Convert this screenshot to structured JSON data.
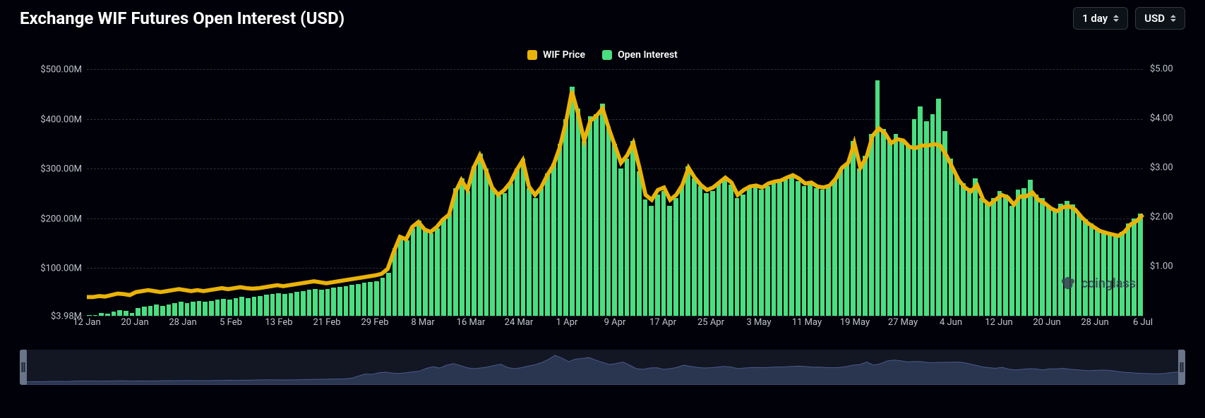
{
  "header": {
    "title": "Exchange WIF Futures Open Interest (USD)",
    "timeframe_label": "1 day",
    "currency_label": "USD"
  },
  "legend": {
    "price": {
      "label": "WIF Price",
      "swatch": "#eab308"
    },
    "oi": {
      "label": "Open Interest",
      "swatch": "#4ade80"
    }
  },
  "watermark": "coinglass",
  "chart": {
    "type": "bar+line",
    "background_color": "#010209",
    "grid_color": "#2a2f38",
    "bar_color": "#4ade80",
    "line_color": "#eab308",
    "line_width": 2,
    "axis_label_color": "#c0c4cb",
    "axis_label_fontsize": 13,
    "left_axis": {
      "min": 3.98,
      "max": 500,
      "ticks": [
        3.98,
        100,
        200,
        300,
        400,
        500
      ],
      "tick_labels": [
        "$3.98M",
        "$100.00M",
        "$200.00M",
        "$300.00M",
        "$400.00M",
        "$500.00M"
      ]
    },
    "right_axis": {
      "min": 0,
      "max": 5,
      "ticks": [
        1,
        2,
        3,
        4,
        5
      ],
      "tick_labels": [
        "$1.00",
        "$2.00",
        "$3.00",
        "$4.00",
        "$5.00"
      ]
    },
    "x_ticks": [
      "12 Jan",
      "20 Jan",
      "28 Jan",
      "5 Feb",
      "13 Feb",
      "21 Feb",
      "29 Feb",
      "8 Mar",
      "16 Mar",
      "24 Mar",
      "1 Apr",
      "9 Apr",
      "17 Apr",
      "25 Apr",
      "3 May",
      "11 May",
      "19 May",
      "27 May",
      "4 Jun",
      "12 Jun",
      "20 Jun",
      "28 Jun",
      "6 Jul"
    ],
    "open_interest": [
      6,
      6,
      10,
      8,
      12,
      15,
      14,
      10,
      20,
      22,
      24,
      26,
      24,
      26,
      30,
      32,
      30,
      32,
      34,
      32,
      34,
      36,
      38,
      36,
      40,
      42,
      40,
      42,
      44,
      46,
      48,
      50,
      48,
      50,
      52,
      54,
      56,
      58,
      56,
      58,
      60,
      62,
      64,
      66,
      68,
      70,
      72,
      74,
      80,
      90,
      140,
      160,
      155,
      180,
      195,
      175,
      170,
      180,
      200,
      210,
      260,
      280,
      255,
      305,
      330,
      300,
      260,
      245,
      250,
      270,
      300,
      320,
      260,
      240,
      260,
      290,
      310,
      350,
      400,
      465,
      420,
      355,
      405,
      410,
      430,
      385,
      350,
      300,
      320,
      355,
      295,
      238,
      225,
      248,
      255,
      225,
      240,
      265,
      305,
      280,
      265,
      250,
      255,
      270,
      280,
      268,
      240,
      248,
      260,
      262,
      258,
      265,
      270,
      272,
      280,
      285,
      275,
      265,
      268,
      260,
      258,
      262,
      278,
      300,
      310,
      355,
      300,
      325,
      370,
      478,
      380,
      355,
      370,
      360,
      345,
      400,
      425,
      395,
      410,
      440,
      375,
      320,
      285,
      270,
      260,
      280,
      240,
      230,
      240,
      255,
      248,
      225,
      258,
      260,
      278,
      248,
      240,
      225,
      218,
      230,
      235,
      228,
      210,
      198,
      190,
      178,
      175,
      168,
      165,
      172,
      190,
      200,
      210
    ],
    "price": [
      0.38,
      0.38,
      0.4,
      0.39,
      0.42,
      0.45,
      0.44,
      0.42,
      0.48,
      0.5,
      0.52,
      0.5,
      0.48,
      0.5,
      0.52,
      0.54,
      0.52,
      0.5,
      0.52,
      0.5,
      0.52,
      0.54,
      0.56,
      0.54,
      0.56,
      0.58,
      0.56,
      0.55,
      0.56,
      0.58,
      0.6,
      0.62,
      0.6,
      0.62,
      0.64,
      0.66,
      0.68,
      0.7,
      0.68,
      0.66,
      0.68,
      0.7,
      0.72,
      0.74,
      0.76,
      0.78,
      0.8,
      0.82,
      0.85,
      0.95,
      1.3,
      1.6,
      1.55,
      1.8,
      1.9,
      1.75,
      1.7,
      1.8,
      1.95,
      2.05,
      2.5,
      2.75,
      2.55,
      3.0,
      3.25,
      2.95,
      2.6,
      2.45,
      2.55,
      2.7,
      2.95,
      3.15,
      2.62,
      2.45,
      2.6,
      2.85,
      3.05,
      3.4,
      3.9,
      4.55,
      4.1,
      3.55,
      3.95,
      4.05,
      4.2,
      3.8,
      3.45,
      3.1,
      3.25,
      3.5,
      3.0,
      2.45,
      2.35,
      2.55,
      2.6,
      2.35,
      2.45,
      2.65,
      3.0,
      2.8,
      2.65,
      2.55,
      2.6,
      2.7,
      2.8,
      2.7,
      2.45,
      2.55,
      2.62,
      2.64,
      2.6,
      2.68,
      2.72,
      2.74,
      2.8,
      2.85,
      2.78,
      2.68,
      2.7,
      2.62,
      2.6,
      2.64,
      2.78,
      3.0,
      3.1,
      3.5,
      3.0,
      3.22,
      3.65,
      3.8,
      3.7,
      3.5,
      3.58,
      3.55,
      3.42,
      3.4,
      3.45,
      3.45,
      3.48,
      3.45,
      3.25,
      3.0,
      2.75,
      2.6,
      2.52,
      2.65,
      2.35,
      2.25,
      2.35,
      2.45,
      2.4,
      2.25,
      2.42,
      2.42,
      2.5,
      2.35,
      2.28,
      2.18,
      2.12,
      2.2,
      2.22,
      2.15,
      2.0,
      1.88,
      1.8,
      1.72,
      1.68,
      1.65,
      1.62,
      1.7,
      1.85,
      1.92,
      2.05
    ]
  },
  "scrubber": {
    "bg": "#121723",
    "area_fill": "#2a3550",
    "area_stroke": "#4a5a8a",
    "handle_color": "#6a7589"
  }
}
